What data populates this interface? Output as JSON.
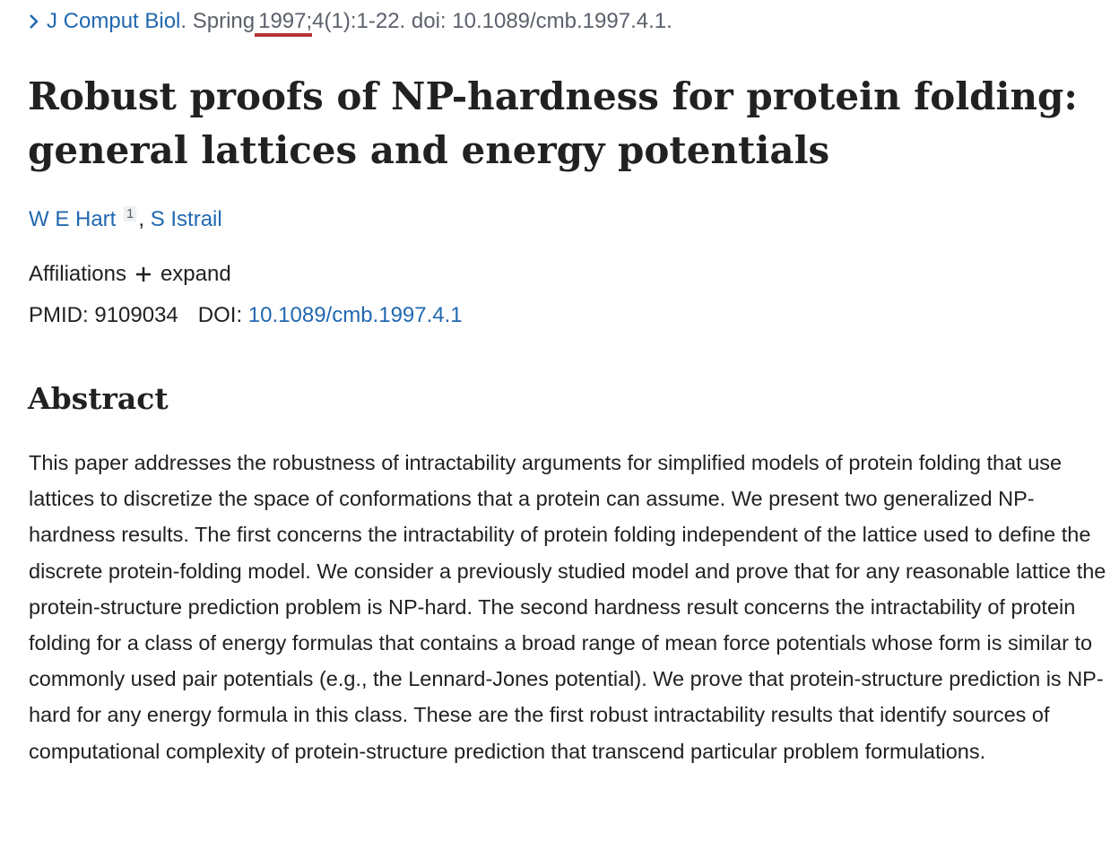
{
  "citation": {
    "journal": "J Comput Biol",
    "details_before": ". Spring",
    "year": "1997;",
    "details_after": "4(1):1-22. doi: 10.1089/cmb.1997.4.1."
  },
  "title_lines": [
    "Robust proofs of NP-hardness for protein folding:",
    "general lattices and energy potentials"
  ],
  "authors": {
    "first": "W E Hart",
    "affiliation_number": "1",
    "separator": ",",
    "second": "S Istrail"
  },
  "affiliations": {
    "label": "Affiliations",
    "toggle": "expand"
  },
  "ids": {
    "pmid_label": "PMID:",
    "pmid": "9109034",
    "doi_label": "DOI:",
    "doi": "10.1089/cmb.1997.4.1"
  },
  "abstract": {
    "heading": "Abstract",
    "text": "This paper addresses the robustness of intractability arguments for simplified models of protein folding that use lattices to discretize the space of conformations that a protein can assume. We present two generalized NP-hardness results. The first concerns the intractability of protein folding independent of the lattice used to define the discrete protein-folding model. We consider a previously studied model and prove that for any reasonable lattice the protein-structure prediction problem is NP-hard. The second hardness result concerns the intractability of protein folding for a class of energy formulas that contains a broad range of mean force potentials whose form is similar to commonly used pair potentials (e.g., the Lennard-Jones potential). We prove that protein-structure prediction is NP-hard for any energy formula in this class. These are the first robust intractability results that identify sources of computational complexity of protein-structure prediction that transcend particular problem formulations."
  }
}
